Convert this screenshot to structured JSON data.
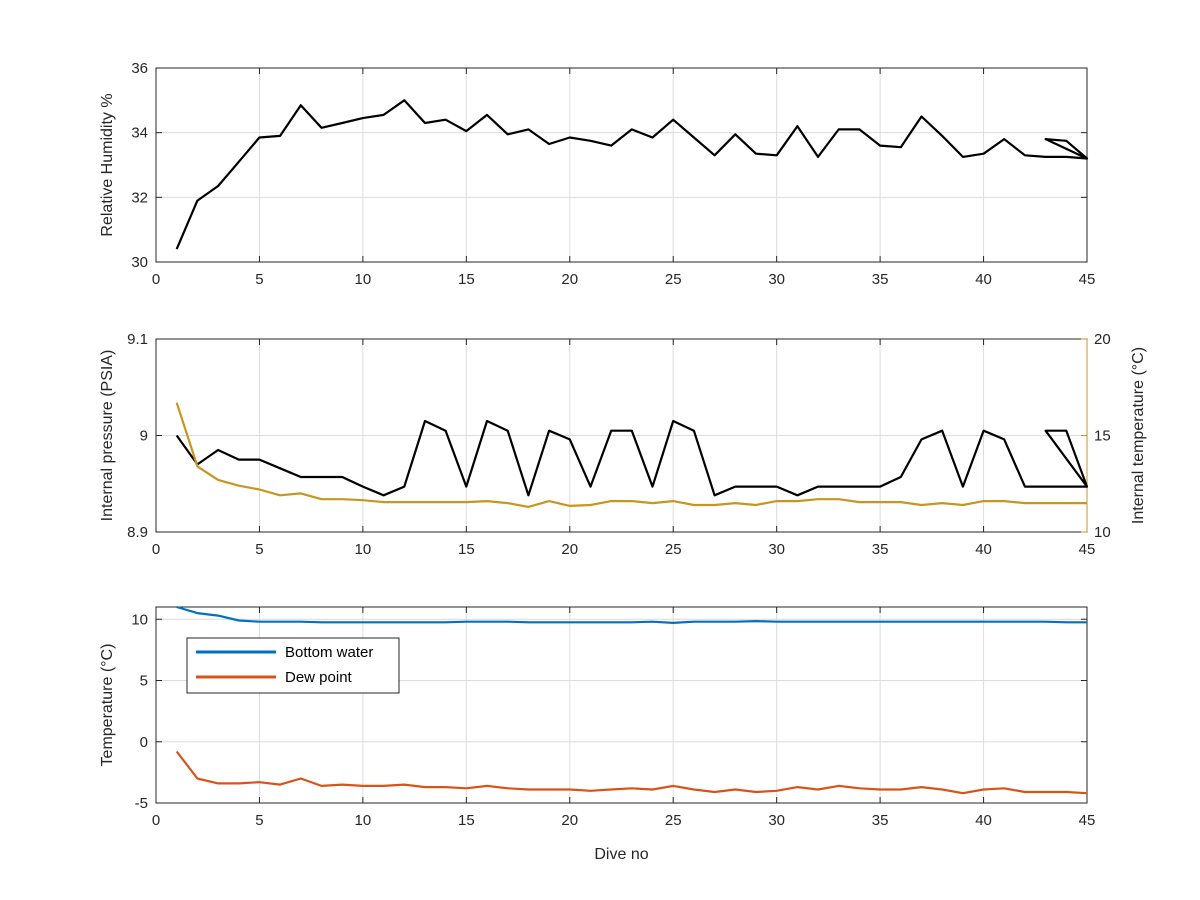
{
  "figure": {
    "x_label": "Dive no"
  },
  "colors": {
    "black": "#000000",
    "gold": "#c8961e",
    "blue": "#0072bd",
    "orange": "#d95319",
    "axis": "#262626",
    "grid": "#dcdcdc"
  },
  "chart_data": [
    {
      "type": "line",
      "ylabel": "Relative Humidity %",
      "xlim": [
        0,
        45
      ],
      "ylim": [
        30,
        36
      ],
      "x_ticks": [
        "0",
        "5",
        "10",
        "15",
        "20",
        "25",
        "30",
        "35",
        "40",
        "45"
      ],
      "y_ticks": [
        "30",
        "32",
        "34",
        "36"
      ],
      "grid": true,
      "series": [
        {
          "color": "black",
          "points": [
            [
              1,
              30.4
            ],
            [
              2,
              31.9
            ],
            [
              3,
              32.35
            ],
            [
              4,
              33.1
            ],
            [
              5,
              33.85
            ],
            [
              6,
              33.9
            ],
            [
              7,
              34.85
            ],
            [
              8,
              34.15
            ],
            [
              9,
              34.3
            ],
            [
              10,
              34.45
            ],
            [
              11,
              34.55
            ],
            [
              12,
              35.0
            ],
            [
              13,
              34.3
            ],
            [
              14,
              34.4
            ],
            [
              15,
              34.05
            ],
            [
              16,
              34.55
            ],
            [
              17,
              33.95
            ],
            [
              18,
              34.1
            ],
            [
              19,
              33.65
            ],
            [
              20,
              33.85
            ],
            [
              21,
              33.75
            ],
            [
              22,
              33.6
            ],
            [
              23,
              34.1
            ],
            [
              24,
              33.85
            ],
            [
              25,
              34.4
            ],
            [
              26,
              33.85
            ],
            [
              27,
              33.3
            ],
            [
              28,
              33.95
            ],
            [
              29,
              33.35
            ],
            [
              30,
              33.3
            ],
            [
              31,
              34.2
            ],
            [
              32,
              33.25
            ],
            [
              33,
              34.1
            ],
            [
              34,
              34.1
            ],
            [
              35,
              33.6
            ],
            [
              36,
              33.55
            ],
            [
              37,
              34.5
            ],
            [
              38,
              33.9
            ],
            [
              39,
              33.25
            ],
            [
              40,
              33.35
            ],
            [
              41,
              33.8
            ],
            [
              42,
              33.3
            ],
            [
              43,
              33.25
            ],
            [
              44,
              33.25
            ],
            [
              45,
              33.2
            ],
            [
              43,
              33.8
            ],
            [
              44,
              33.75
            ],
            [
              45,
              33.2
            ]
          ]
        }
      ]
    },
    {
      "type": "line",
      "ylabel": "Internal pressure (PSIA)",
      "y2label": "Internal temperature (°C)",
      "xlim": [
        0,
        45
      ],
      "ylim": [
        8.9,
        9.1
      ],
      "y2lim": [
        10,
        20
      ],
      "x_ticks": [
        "0",
        "5",
        "10",
        "15",
        "20",
        "25",
        "30",
        "35",
        "40",
        "45"
      ],
      "y_ticks": [
        "8.9",
        "9",
        "9.1"
      ],
      "y2_ticks": [
        "10",
        "15",
        "20"
      ],
      "grid": true,
      "series": [
        {
          "axis": "left",
          "color": "black",
          "points": [
            [
              1,
              9.0
            ],
            [
              2,
              8.97
            ],
            [
              3,
              8.985
            ],
            [
              4,
              8.975
            ],
            [
              5,
              8.975
            ],
            [
              6,
              8.966
            ],
            [
              7,
              8.957
            ],
            [
              8,
              8.957
            ],
            [
              9,
              8.957
            ],
            [
              10,
              8.947
            ],
            [
              11,
              8.938
            ],
            [
              12,
              8.947
            ],
            [
              13,
              9.015
            ],
            [
              14,
              9.005
            ],
            [
              15,
              8.947
            ],
            [
              16,
              9.015
            ],
            [
              17,
              9.005
            ],
            [
              18,
              8.938
            ],
            [
              19,
              9.005
            ],
            [
              20,
              8.996
            ],
            [
              21,
              8.947
            ],
            [
              22,
              9.005
            ],
            [
              23,
              9.005
            ],
            [
              24,
              8.947
            ],
            [
              25,
              9.015
            ],
            [
              26,
              9.005
            ],
            [
              27,
              8.938
            ],
            [
              28,
              8.947
            ],
            [
              29,
              8.947
            ],
            [
              30,
              8.947
            ],
            [
              31,
              8.938
            ],
            [
              32,
              8.947
            ],
            [
              33,
              8.947
            ],
            [
              34,
              8.947
            ],
            [
              35,
              8.947
            ],
            [
              36,
              8.957
            ],
            [
              37,
              8.996
            ],
            [
              38,
              9.005
            ],
            [
              39,
              8.947
            ],
            [
              40,
              9.005
            ],
            [
              41,
              8.996
            ],
            [
              42,
              8.947
            ],
            [
              43,
              8.947
            ],
            [
              44,
              8.947
            ],
            [
              45,
              8.947
            ],
            [
              43,
              9.005
            ],
            [
              44,
              9.005
            ],
            [
              45,
              8.947
            ]
          ]
        },
        {
          "axis": "right",
          "color": "gold",
          "points": [
            [
              1,
              16.7
            ],
            [
              2,
              13.4
            ],
            [
              3,
              12.7
            ],
            [
              4,
              12.4
            ],
            [
              5,
              12.2
            ],
            [
              6,
              11.9
            ],
            [
              7,
              12.0
            ],
            [
              8,
              11.7
            ],
            [
              9,
              11.7
            ],
            [
              10,
              11.65
            ],
            [
              11,
              11.55
            ],
            [
              12,
              11.55
            ],
            [
              13,
              11.55
            ],
            [
              14,
              11.55
            ],
            [
              15,
              11.55
            ],
            [
              16,
              11.6
            ],
            [
              17,
              11.5
            ],
            [
              18,
              11.3
            ],
            [
              19,
              11.6
            ],
            [
              20,
              11.35
            ],
            [
              21,
              11.4
            ],
            [
              22,
              11.6
            ],
            [
              23,
              11.6
            ],
            [
              24,
              11.5
            ],
            [
              25,
              11.6
            ],
            [
              26,
              11.4
            ],
            [
              27,
              11.4
            ],
            [
              28,
              11.5
            ],
            [
              29,
              11.4
            ],
            [
              30,
              11.6
            ],
            [
              31,
              11.6
            ],
            [
              32,
              11.7
            ],
            [
              33,
              11.7
            ],
            [
              34,
              11.55
            ],
            [
              35,
              11.55
            ],
            [
              36,
              11.55
            ],
            [
              37,
              11.4
            ],
            [
              38,
              11.5
            ],
            [
              39,
              11.4
            ],
            [
              40,
              11.6
            ],
            [
              41,
              11.6
            ],
            [
              42,
              11.5
            ],
            [
              43,
              11.5
            ],
            [
              44,
              11.5
            ],
            [
              45,
              11.5
            ]
          ]
        }
      ]
    },
    {
      "type": "line",
      "ylabel": "Temperature (°C)",
      "xlabel": "Dive no",
      "xlim": [
        0,
        45
      ],
      "ylim": [
        -5,
        11
      ],
      "x_ticks": [
        "0",
        "5",
        "10",
        "15",
        "20",
        "25",
        "30",
        "35",
        "40",
        "45"
      ],
      "y_ticks": [
        "-5",
        "0",
        "5",
        "10"
      ],
      "grid": true,
      "legend_position": "top-left",
      "series": [
        {
          "name": "Bottom water",
          "color": "blue",
          "points": [
            [
              1,
              11.0
            ],
            [
              2,
              10.5
            ],
            [
              3,
              10.3
            ],
            [
              4,
              9.9
            ],
            [
              5,
              9.8
            ],
            [
              6,
              9.8
            ],
            [
              7,
              9.8
            ],
            [
              8,
              9.75
            ],
            [
              9,
              9.75
            ],
            [
              10,
              9.75
            ],
            [
              11,
              9.75
            ],
            [
              12,
              9.75
            ],
            [
              13,
              9.75
            ],
            [
              14,
              9.75
            ],
            [
              15,
              9.8
            ],
            [
              16,
              9.8
            ],
            [
              17,
              9.8
            ],
            [
              18,
              9.75
            ],
            [
              19,
              9.75
            ],
            [
              20,
              9.75
            ],
            [
              21,
              9.75
            ],
            [
              22,
              9.75
            ],
            [
              23,
              9.75
            ],
            [
              24,
              9.8
            ],
            [
              25,
              9.7
            ],
            [
              26,
              9.8
            ],
            [
              27,
              9.8
            ],
            [
              28,
              9.8
            ],
            [
              29,
              9.85
            ],
            [
              30,
              9.8
            ],
            [
              31,
              9.8
            ],
            [
              32,
              9.8
            ],
            [
              33,
              9.8
            ],
            [
              34,
              9.8
            ],
            [
              35,
              9.8
            ],
            [
              36,
              9.8
            ],
            [
              37,
              9.8
            ],
            [
              38,
              9.8
            ],
            [
              39,
              9.8
            ],
            [
              40,
              9.8
            ],
            [
              41,
              9.8
            ],
            [
              42,
              9.8
            ],
            [
              43,
              9.8
            ],
            [
              44,
              9.75
            ],
            [
              45,
              9.75
            ]
          ]
        },
        {
          "name": "Dew point",
          "color": "orange",
          "points": [
            [
              1,
              -0.8
            ],
            [
              2,
              -3.0
            ],
            [
              3,
              -3.4
            ],
            [
              4,
              -3.4
            ],
            [
              5,
              -3.3
            ],
            [
              6,
              -3.5
            ],
            [
              7,
              -3.0
            ],
            [
              8,
              -3.6
            ],
            [
              9,
              -3.5
            ],
            [
              10,
              -3.6
            ],
            [
              11,
              -3.6
            ],
            [
              12,
              -3.5
            ],
            [
              13,
              -3.7
            ],
            [
              14,
              -3.7
            ],
            [
              15,
              -3.8
            ],
            [
              16,
              -3.6
            ],
            [
              17,
              -3.8
            ],
            [
              18,
              -3.9
            ],
            [
              19,
              -3.9
            ],
            [
              20,
              -3.9
            ],
            [
              21,
              -4.0
            ],
            [
              22,
              -3.9
            ],
            [
              23,
              -3.8
            ],
            [
              24,
              -3.9
            ],
            [
              25,
              -3.6
            ],
            [
              26,
              -3.9
            ],
            [
              27,
              -4.1
            ],
            [
              28,
              -3.9
            ],
            [
              29,
              -4.1
            ],
            [
              30,
              -4.0
            ],
            [
              31,
              -3.7
            ],
            [
              32,
              -3.9
            ],
            [
              33,
              -3.6
            ],
            [
              34,
              -3.8
            ],
            [
              35,
              -3.9
            ],
            [
              36,
              -3.9
            ],
            [
              37,
              -3.7
            ],
            [
              38,
              -3.9
            ],
            [
              39,
              -4.2
            ],
            [
              40,
              -3.9
            ],
            [
              41,
              -3.8
            ],
            [
              42,
              -4.1
            ],
            [
              43,
              -4.1
            ],
            [
              44,
              -4.1
            ],
            [
              45,
              -4.2
            ]
          ]
        }
      ]
    }
  ]
}
